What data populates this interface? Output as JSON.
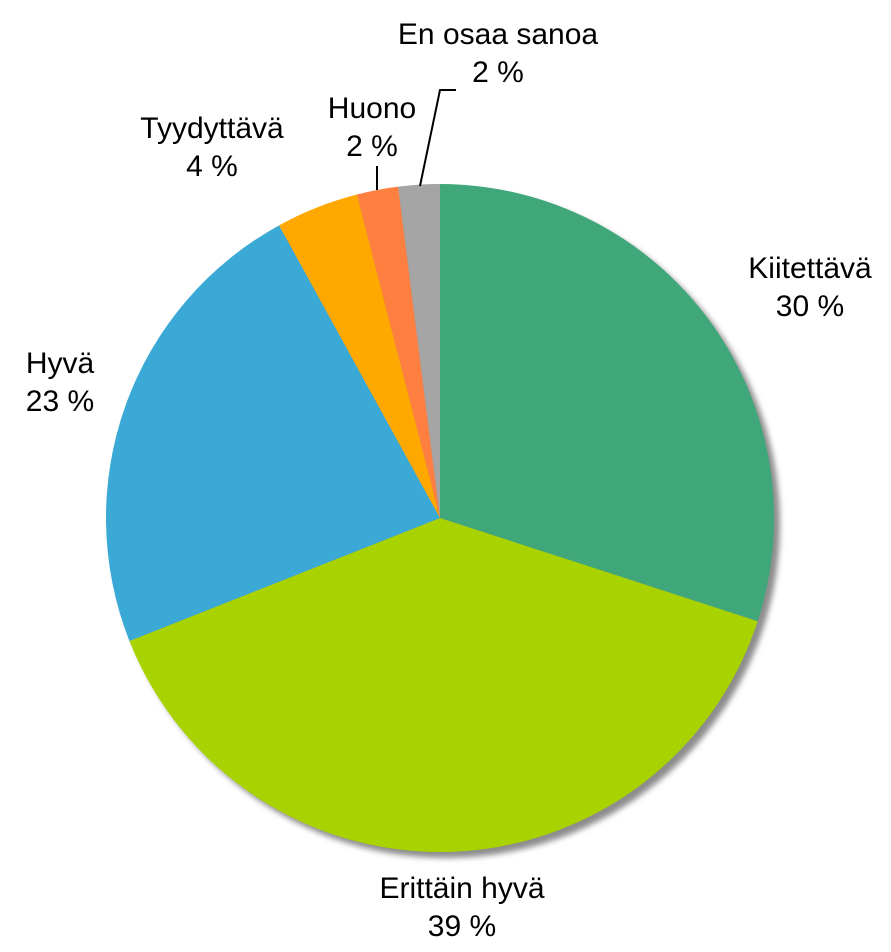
{
  "chart_data": {
    "type": "pie",
    "categories": [
      "Kiitettävä",
      "Erittäin hyvä",
      "Hyvä",
      "Tyydyttävä",
      "Huono",
      "En osaa sanoa"
    ],
    "values": [
      30,
      39,
      23,
      4,
      2,
      2
    ],
    "value_labels": [
      "30 %",
      "39 %",
      "23 %",
      "4 %",
      "2 %",
      "2 %"
    ],
    "colors": [
      "#3fa77a",
      "#a8d200",
      "#3aa9d6",
      "#ffa800",
      "#ff7f40",
      "#a5a5a5"
    ]
  }
}
